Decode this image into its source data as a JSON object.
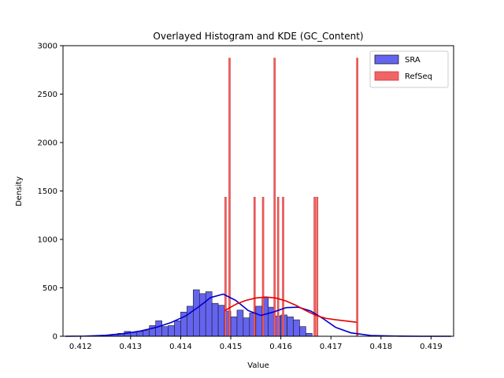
{
  "chart_data": {
    "type": "histogram",
    "title": "Overlayed Histogram and KDE (GC_Content)",
    "xlabel": "Value",
    "ylabel": "Density",
    "xlim": [
      0.41165,
      0.41945
    ],
    "ylim": [
      0,
      3000
    ],
    "x_ticks": [
      0.412,
      0.413,
      0.414,
      0.415,
      0.416,
      0.417,
      0.418,
      0.419
    ],
    "x_tick_labels": [
      "0.412",
      "0.413",
      "0.414",
      "0.415",
      "0.416",
      "0.417",
      "0.418",
      "0.419"
    ],
    "y_ticks": [
      0,
      500,
      1000,
      1500,
      2000,
      2500,
      3000
    ],
    "y_tick_labels": [
      "0",
      "500",
      "1000",
      "1500",
      "2000",
      "2500",
      "3000"
    ],
    "grid": false,
    "legend_position": "top-right",
    "series": [
      {
        "name": "SRA",
        "color": "#6464f0",
        "kde_color": "#0000cc",
        "bin_width": 0.000125,
        "bin_starts": [
          0.4125,
          0.412625,
          0.41275,
          0.412875,
          0.413,
          0.413125,
          0.41325,
          0.413375,
          0.4135,
          0.413625,
          0.41375,
          0.413875,
          0.414,
          0.414125,
          0.41425,
          0.414375,
          0.4145,
          0.414625,
          0.41475,
          0.414875,
          0.415,
          0.415125,
          0.41525,
          0.415375,
          0.4155,
          0.415625,
          0.41575,
          0.415875,
          0.416,
          0.416125,
          0.41625,
          0.416375,
          0.4165,
          0.416625,
          0.41675,
          0.416875,
          0.417,
          0.417125
        ],
        "values": [
          10,
          20,
          30,
          50,
          40,
          50,
          60,
          110,
          160,
          100,
          110,
          160,
          250,
          310,
          480,
          440,
          460,
          340,
          320,
          260,
          200,
          270,
          190,
          240,
          310,
          400,
          300,
          210,
          220,
          200,
          170,
          100,
          30,
          0,
          0,
          0,
          0,
          0
        ],
        "kde_x": [
          0.4117,
          0.4121,
          0.4125,
          0.4129,
          0.4132,
          0.4135,
          0.4138,
          0.4141,
          0.41435,
          0.4146,
          0.41485,
          0.4151,
          0.41535,
          0.4156,
          0.41585,
          0.4161,
          0.41635,
          0.4166,
          0.41685,
          0.4171,
          0.4174,
          0.4178,
          0.4183,
          0.4188,
          0.4194
        ],
        "kde_y": [
          0,
          2,
          10,
          30,
          55,
          90,
          140,
          210,
          300,
          400,
          435,
          370,
          265,
          215,
          250,
          295,
          300,
          260,
          180,
          90,
          35,
          8,
          2,
          0,
          0
        ]
      },
      {
        "name": "RefSeq",
        "color": "#f06464",
        "kde_color": "#e60000",
        "bin_width": 2.5e-05,
        "bar_x": [
          0.41488,
          0.41496,
          0.41546,
          0.41563,
          0.41586,
          0.41593,
          0.41603,
          0.41666,
          0.41671,
          0.41751
        ],
        "values": [
          1436,
          2872,
          1436,
          1436,
          2872,
          1436,
          1436,
          1436,
          1436,
          2872
        ],
        "kde_x": [
          0.41488,
          0.4151,
          0.4153,
          0.4155,
          0.4157,
          0.4159,
          0.4161,
          0.4163,
          0.4165,
          0.4167,
          0.4169,
          0.4171,
          0.4173,
          0.41751
        ],
        "kde_y": [
          265,
          330,
          370,
          395,
          405,
          395,
          365,
          320,
          265,
          215,
          185,
          170,
          158,
          145
        ]
      }
    ]
  }
}
